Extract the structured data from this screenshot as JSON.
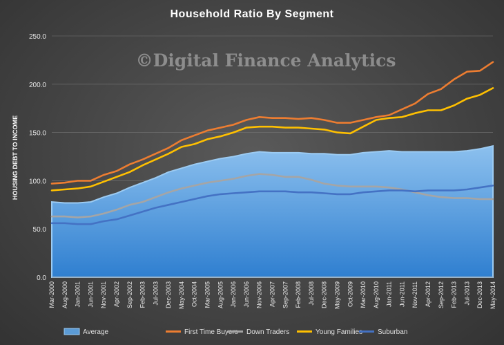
{
  "chart_data": {
    "type": "line",
    "title": "Household  Ratio  By Segment",
    "ylabel": "HOUSING DEBT TO INCOME",
    "watermark": "©Digital Finance Analytics",
    "ylim": [
      0,
      250
    ],
    "y_ticks": [
      "0.0",
      "50.0",
      "100.0",
      "150.0",
      "200.0",
      "250.0"
    ],
    "x_tick_labels": [
      "Mar-2000",
      "Aug-2000",
      "Jan-2001",
      "Jun-2001",
      "Nov-2001",
      "Apr-2002",
      "Sep-2002",
      "Feb-2003",
      "Jul-2003",
      "Dec-2003",
      "May-2004",
      "Oct-2004",
      "Mar-2005",
      "Aug-2005",
      "Jan-2006",
      "Jun-2006",
      "Nov-2006",
      "Apr-2007",
      "Sep-2007",
      "Feb-2008",
      "Jul-2008",
      "Dec-2008",
      "May-2009",
      "Oct-2009",
      "Mar-2010",
      "Aug-2010",
      "Jan-2011",
      "Jun-2011",
      "Nov-2011",
      "Apr-2012",
      "Sep-2012",
      "Feb-2013",
      "Jul-2013",
      "Dec-2013",
      "May-2014"
    ],
    "legend_position": "bottom",
    "series": [
      {
        "name": "Average",
        "kind": "area",
        "color": "#5b9bd5",
        "values": [
          78,
          77,
          77,
          78,
          83,
          87,
          93,
          98,
          103,
          109,
          113,
          117,
          120,
          123,
          125,
          128,
          130,
          129,
          129,
          129,
          128,
          128,
          127,
          127,
          129,
          130,
          131,
          130,
          130,
          130,
          130,
          130,
          131,
          133,
          136
        ]
      },
      {
        "name": "First Time Buyers",
        "kind": "line",
        "color": "#ed7d31",
        "values": [
          97,
          98,
          100,
          100,
          106,
          110,
          117,
          122,
          128,
          134,
          142,
          147,
          152,
          155,
          158,
          163,
          166,
          165,
          165,
          164,
          165,
          163,
          160,
          160,
          163,
          166,
          168,
          174,
          180,
          190,
          195,
          205,
          213,
          214,
          223
        ]
      },
      {
        "name": "Down Traders",
        "kind": "line",
        "color": "#a5a5a5",
        "values": [
          63,
          63,
          62,
          63,
          66,
          70,
          75,
          78,
          83,
          88,
          92,
          95,
          98,
          100,
          102,
          105,
          107,
          106,
          104,
          104,
          101,
          97,
          95,
          94,
          94,
          94,
          93,
          91,
          88,
          85,
          83,
          82,
          82,
          81,
          81
        ]
      },
      {
        "name": "Young Families",
        "kind": "line",
        "color": "#ffc000",
        "values": [
          90,
          91,
          92,
          94,
          99,
          104,
          109,
          116,
          122,
          128,
          135,
          138,
          143,
          146,
          150,
          155,
          156,
          156,
          155,
          155,
          154,
          153,
          150,
          149,
          156,
          163,
          165,
          166,
          170,
          173,
          173,
          178,
          185,
          189,
          196
        ]
      },
      {
        "name": "Suburban",
        "kind": "line",
        "color": "#4472c4",
        "values": [
          56,
          56,
          55,
          55,
          58,
          60,
          64,
          68,
          72,
          75,
          78,
          81,
          84,
          86,
          87,
          88,
          89,
          89,
          89,
          88,
          88,
          87,
          86,
          86,
          88,
          89,
          90,
          90,
          89,
          90,
          90,
          90,
          91,
          93,
          95
        ]
      }
    ]
  }
}
